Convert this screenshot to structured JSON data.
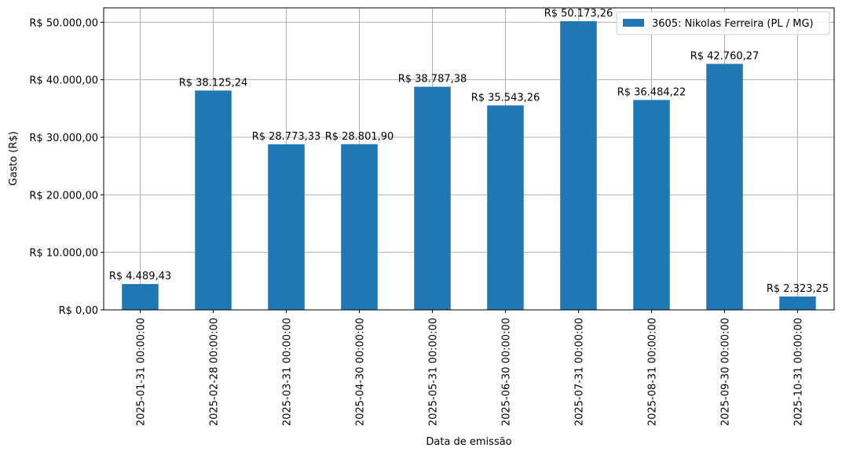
{
  "chart_data": {
    "type": "bar",
    "xlabel": "Data de emissão",
    "ylabel": "Gasto (R$)",
    "ylim": [
      0,
      52500
    ],
    "grid": true,
    "legend_position": "top-right",
    "bar_color": "#1f77b4",
    "categories": [
      "2025-01-31 00:00:00",
      "2025-02-28 00:00:00",
      "2025-03-31 00:00:00",
      "2025-04-30 00:00:00",
      "2025-05-31 00:00:00",
      "2025-06-30 00:00:00",
      "2025-07-31 00:00:00",
      "2025-08-31 00:00:00",
      "2025-09-30 00:00:00",
      "2025-10-31 00:00:00"
    ],
    "series": [
      {
        "name": "3605: Nikolas Ferreira (PL / MG)",
        "values": [
          4489.43,
          38125.24,
          28773.33,
          28801.9,
          38787.38,
          35543.26,
          50173.26,
          36484.22,
          42760.27,
          2323.25
        ],
        "data_labels": [
          "R$ 4.489,43",
          "R$ 38.125,24",
          "R$ 28.773,33",
          "R$ 28.801,90",
          "R$ 38.787,38",
          "R$ 35.543,26",
          "R$ 50.173,26",
          "R$ 36.484,22",
          "R$ 42.760,27",
          "R$ 2.323,25"
        ]
      }
    ],
    "y_ticks": [
      0,
      10000,
      20000,
      30000,
      40000,
      50000
    ],
    "y_tick_labels": [
      "R$ 0,00",
      "R$ 10.000,00",
      "R$ 20.000,00",
      "R$ 30.000,00",
      "R$ 40.000,00",
      "R$ 50.000,00"
    ]
  }
}
